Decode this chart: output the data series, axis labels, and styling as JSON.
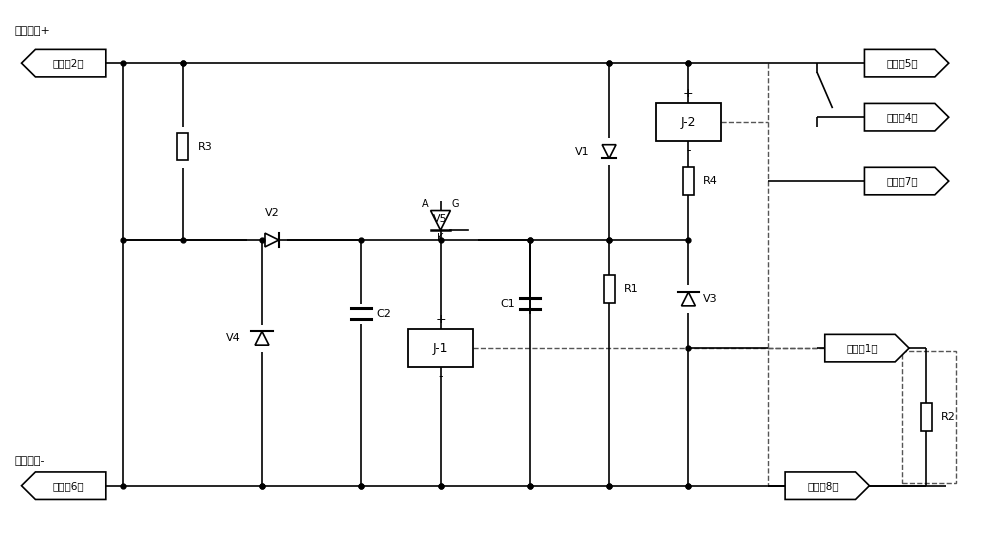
{
  "bg_color": "#ffffff",
  "line_color": "#000000",
  "dashed_color": "#555555",
  "labels": {
    "input_plus": "输入电压+",
    "input_minus": "输入电压-",
    "pin2": "引出端2脚",
    "pin6": "引出端6脚",
    "pin8": "引出端8脚",
    "pin1": "引出端1脚",
    "pin5": "引出端5脚",
    "pin4": "引出端4脚",
    "pin7": "引出端7脚",
    "J1": "J-1",
    "J2": "J-2"
  }
}
